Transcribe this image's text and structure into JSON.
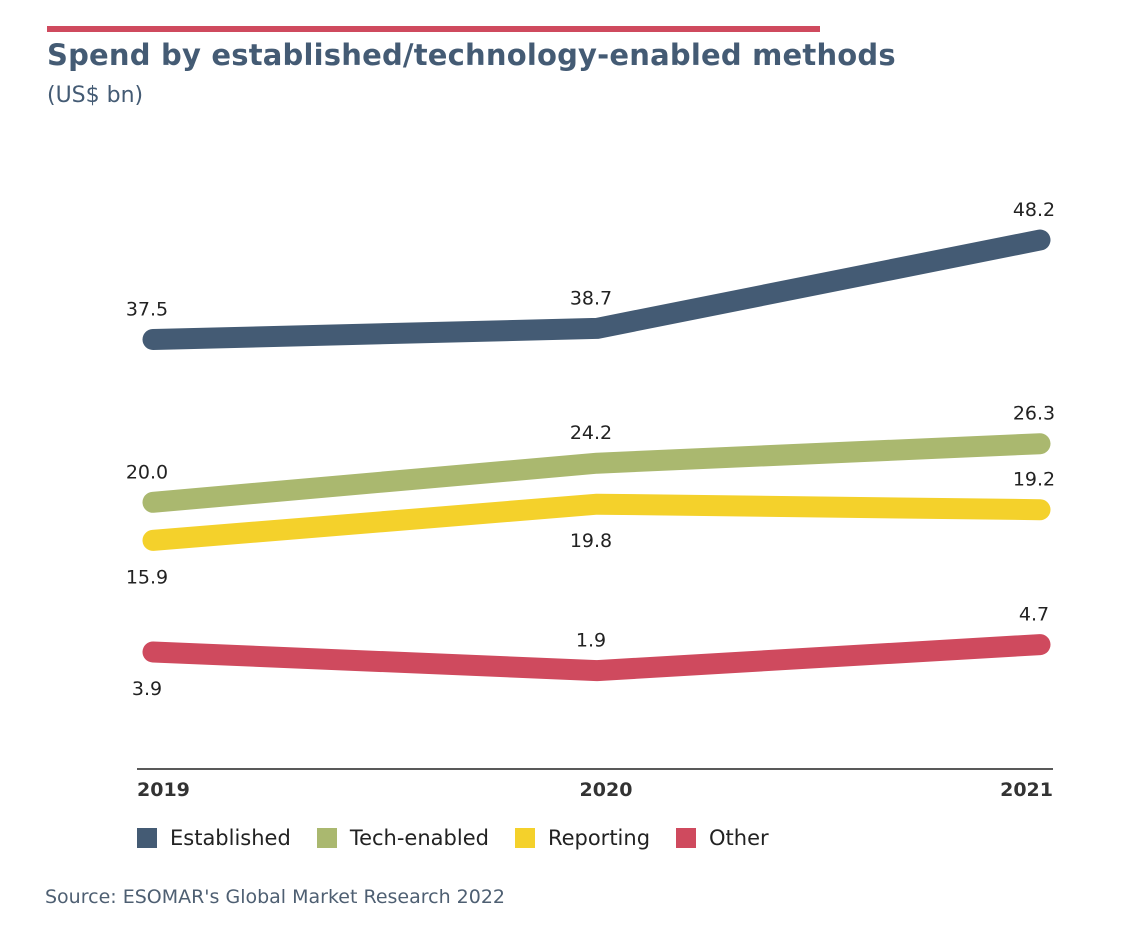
{
  "header": {
    "title": "Spend by established/technology-enabled methods",
    "subtitle": "(US$ bn)"
  },
  "chart_data": {
    "type": "line",
    "title": "Spend by established/technology-enabled methods",
    "subtitle": "(US$ bn)",
    "xlabel": "",
    "ylabel": "",
    "x": [
      "2019",
      "2020",
      "2021"
    ],
    "series": [
      {
        "name": "Established",
        "color": "#445b74",
        "values": [
          37.5,
          38.7,
          48.2
        ],
        "labels": [
          "37.5",
          "38.7",
          "48.2"
        ],
        "label_pos": [
          "above",
          "above",
          "above"
        ]
      },
      {
        "name": "Tech-enabled",
        "color": "#aab86f",
        "values": [
          20.0,
          24.2,
          26.3
        ],
        "labels": [
          "20.0",
          "24.2",
          "26.3"
        ],
        "label_pos": [
          "above",
          "above",
          "above"
        ]
      },
      {
        "name": "Reporting",
        "color": "#f4d12b",
        "values": [
          15.9,
          19.8,
          19.2
        ],
        "labels": [
          "15.9",
          "19.8",
          "19.2"
        ],
        "label_pos": [
          "below",
          "below",
          "above"
        ]
      },
      {
        "name": "Other",
        "color": "#cf4a5e",
        "values": [
          3.9,
          1.9,
          4.7
        ],
        "labels": [
          "3.9",
          "1.9",
          "4.7"
        ],
        "label_pos": [
          "below",
          "above",
          "above"
        ]
      }
    ],
    "grid": false,
    "legend_position": "bottom-left"
  },
  "source": "Source: ESOMAR's Global Market Research 2022"
}
